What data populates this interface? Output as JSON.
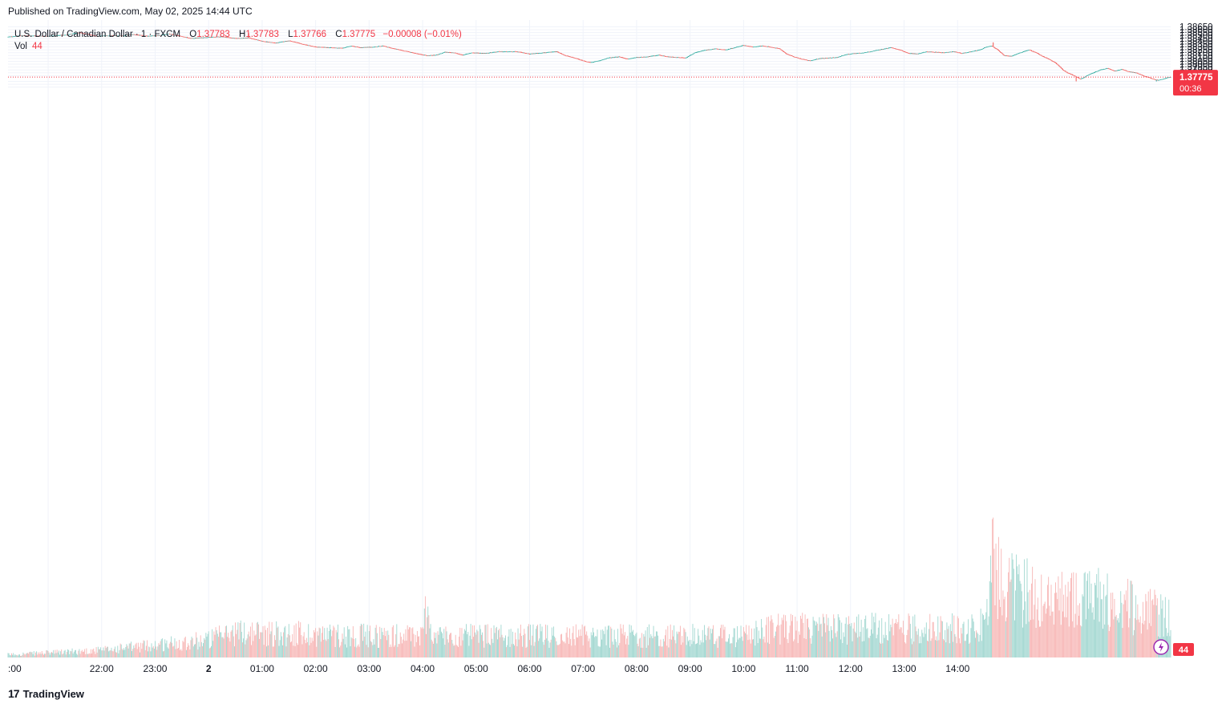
{
  "header": {
    "published": "Published on TradingView.com, May 02, 2025 14:44 UTC"
  },
  "legend": {
    "symbol": "U.S. Dollar / Canadian Dollar · 1 · FXCM",
    "open_label": "O",
    "open": "1.37783",
    "high_label": "H",
    "high": "1.37783",
    "low_label": "L",
    "low": "1.37766",
    "close_label": "C",
    "close": "1.37775",
    "change": "−0.00008 (−0.01%)",
    "vol_label": "Vol",
    "vol_value": "44"
  },
  "footer": {
    "brand": "TradingView",
    "logo_glyph": "17"
  },
  "colors": {
    "up": "#26a69a",
    "down": "#ef5350",
    "up_volume": "#9fd6cf",
    "down_volume": "#f7b5b4",
    "last_price_bg": "#f23645",
    "grid": "#f0f3fa",
    "text": "#131722"
  },
  "chart_data": {
    "type": "candlestick",
    "symbol": "USDCAD",
    "interval": "1",
    "y_axis": {
      "range": [
        1.3756,
        1.3866
      ],
      "ticks": [
        "1.38650",
        "1.38600",
        "1.38550",
        "1.38500",
        "1.38450",
        "1.38400",
        "1.38350",
        "1.38300",
        "1.38250",
        "1.38200",
        "1.38150",
        "1.38100",
        "1.38050",
        "1.38000",
        "1.37950",
        "1.37900",
        "1.37850",
        "1.37800",
        "1.37700",
        "1.37650",
        "1.37600"
      ]
    },
    "x_axis": {
      "ticks": [
        ":00",
        "22:00",
        "23:00",
        "2",
        "01:00",
        "02:00",
        "03:00",
        "04:00",
        "05:00",
        "06:00",
        "07:00",
        "08:00",
        "09:00",
        "10:00",
        "11:00",
        "12:00",
        "13:00",
        "14:00"
      ],
      "range_minutes": [
        -225,
        1079
      ]
    },
    "last_price": "1.37775",
    "countdown": "00:36",
    "volume_badge": "44",
    "price_path": [
      {
        "t": -225,
        "p": 1.38475
      },
      {
        "t": -210,
        "p": 1.385
      },
      {
        "t": -195,
        "p": 1.38495
      },
      {
        "t": -180,
        "p": 1.3849
      },
      {
        "t": -160,
        "p": 1.3851
      },
      {
        "t": -145,
        "p": 1.3855
      },
      {
        "t": -135,
        "p": 1.3852
      },
      {
        "t": -125,
        "p": 1.3849
      },
      {
        "t": -110,
        "p": 1.385
      },
      {
        "t": -95,
        "p": 1.38495
      },
      {
        "t": -85,
        "p": 1.3852
      },
      {
        "t": -70,
        "p": 1.3849
      },
      {
        "t": -55,
        "p": 1.385
      },
      {
        "t": -45,
        "p": 1.3853
      },
      {
        "t": -35,
        "p": 1.385
      },
      {
        "t": -20,
        "p": 1.3845
      },
      {
        "t": 0,
        "p": 1.3847
      },
      {
        "t": 15,
        "p": 1.3848
      },
      {
        "t": 30,
        "p": 1.3845
      },
      {
        "t": 45,
        "p": 1.3846
      },
      {
        "t": 60,
        "p": 1.384
      },
      {
        "t": 75,
        "p": 1.3837
      },
      {
        "t": 90,
        "p": 1.3841
      },
      {
        "t": 105,
        "p": 1.3835
      },
      {
        "t": 120,
        "p": 1.383
      },
      {
        "t": 135,
        "p": 1.3829
      },
      {
        "t": 150,
        "p": 1.3828
      },
      {
        "t": 160,
        "p": 1.3832
      },
      {
        "t": 170,
        "p": 1.3829
      },
      {
        "t": 185,
        "p": 1.383
      },
      {
        "t": 195,
        "p": 1.3832
      },
      {
        "t": 205,
        "p": 1.3828
      },
      {
        "t": 220,
        "p": 1.3823
      },
      {
        "t": 235,
        "p": 1.3818
      },
      {
        "t": 245,
        "p": 1.3815
      },
      {
        "t": 255,
        "p": 1.3816
      },
      {
        "t": 265,
        "p": 1.3821
      },
      {
        "t": 275,
        "p": 1.382
      },
      {
        "t": 285,
        "p": 1.3816
      },
      {
        "t": 295,
        "p": 1.382
      },
      {
        "t": 310,
        "p": 1.3819
      },
      {
        "t": 325,
        "p": 1.3822
      },
      {
        "t": 345,
        "p": 1.3822
      },
      {
        "t": 360,
        "p": 1.3818
      },
      {
        "t": 375,
        "p": 1.382
      },
      {
        "t": 390,
        "p": 1.3822
      },
      {
        "t": 400,
        "p": 1.3815
      },
      {
        "t": 410,
        "p": 1.3811
      },
      {
        "t": 420,
        "p": 1.3806
      },
      {
        "t": 428,
        "p": 1.3803
      },
      {
        "t": 438,
        "p": 1.3806
      },
      {
        "t": 448,
        "p": 1.3811
      },
      {
        "t": 460,
        "p": 1.3813
      },
      {
        "t": 470,
        "p": 1.3809
      },
      {
        "t": 480,
        "p": 1.3812
      },
      {
        "t": 492,
        "p": 1.3813
      },
      {
        "t": 505,
        "p": 1.3816
      },
      {
        "t": 515,
        "p": 1.3813
      },
      {
        "t": 525,
        "p": 1.3812
      },
      {
        "t": 535,
        "p": 1.3811
      },
      {
        "t": 545,
        "p": 1.382
      },
      {
        "t": 555,
        "p": 1.3824
      },
      {
        "t": 568,
        "p": 1.3827
      },
      {
        "t": 580,
        "p": 1.3825
      },
      {
        "t": 590,
        "p": 1.3829
      },
      {
        "t": 600,
        "p": 1.3833
      },
      {
        "t": 610,
        "p": 1.383
      },
      {
        "t": 620,
        "p": 1.3832
      },
      {
        "t": 630,
        "p": 1.383
      },
      {
        "t": 640,
        "p": 1.3827
      },
      {
        "t": 648,
        "p": 1.3818
      },
      {
        "t": 656,
        "p": 1.3813
      },
      {
        "t": 665,
        "p": 1.3809
      },
      {
        "t": 675,
        "p": 1.3806
      },
      {
        "t": 685,
        "p": 1.381
      },
      {
        "t": 695,
        "p": 1.3811
      },
      {
        "t": 705,
        "p": 1.3812
      },
      {
        "t": 715,
        "p": 1.3817
      },
      {
        "t": 725,
        "p": 1.3819
      },
      {
        "t": 735,
        "p": 1.382
      },
      {
        "t": 745,
        "p": 1.3823
      },
      {
        "t": 755,
        "p": 1.3826
      },
      {
        "t": 765,
        "p": 1.3829
      },
      {
        "t": 775,
        "p": 1.3825
      },
      {
        "t": 785,
        "p": 1.3819
      },
      {
        "t": 795,
        "p": 1.3818
      },
      {
        "t": 805,
        "p": 1.3822
      },
      {
        "t": 815,
        "p": 1.3821
      },
      {
        "t": 825,
        "p": 1.382
      },
      {
        "t": 835,
        "p": 1.3822
      },
      {
        "t": 845,
        "p": 1.3819
      },
      {
        "t": 855,
        "p": 1.3822
      },
      {
        "t": 865,
        "p": 1.3825
      },
      {
        "t": 872,
        "p": 1.383
      },
      {
        "t": 878,
        "p": 1.3832
      },
      {
        "t": 885,
        "p": 1.3825
      },
      {
        "t": 892,
        "p": 1.3815
      },
      {
        "t": 900,
        "p": 1.3814
      },
      {
        "t": 910,
        "p": 1.382
      },
      {
        "t": 920,
        "p": 1.3825
      },
      {
        "t": 928,
        "p": 1.382
      },
      {
        "t": 935,
        "p": 1.3814
      },
      {
        "t": 942,
        "p": 1.3809
      },
      {
        "t": 950,
        "p": 1.3802
      },
      {
        "t": 958,
        "p": 1.379
      },
      {
        "t": 963,
        "p": 1.3785
      },
      {
        "t": 968,
        "p": 1.3782
      },
      {
        "t": 973,
        "p": 1.3778
      },
      {
        "t": 978,
        "p": 1.3774
      },
      {
        "t": 985,
        "p": 1.378
      },
      {
        "t": 992,
        "p": 1.3785
      },
      {
        "t": 1000,
        "p": 1.379
      },
      {
        "t": 1008,
        "p": 1.3793
      },
      {
        "t": 1016,
        "p": 1.3788
      },
      {
        "t": 1024,
        "p": 1.3791
      },
      {
        "t": 1032,
        "p": 1.3787
      },
      {
        "t": 1040,
        "p": 1.3785
      },
      {
        "t": 1048,
        "p": 1.378
      },
      {
        "t": 1056,
        "p": 1.3776
      },
      {
        "t": 1064,
        "p": 1.3772
      },
      {
        "t": 1070,
        "p": 1.3774
      },
      {
        "t": 1074,
        "p": 1.3776
      },
      {
        "t": 1077,
        "p": 1.3777
      },
      {
        "t": 1079,
        "p": 1.37775
      }
    ],
    "spikes": [
      {
        "t": 45,
        "high": 1.3854
      },
      {
        "t": 880,
        "high": 1.3838
      },
      {
        "t": 973,
        "low": 1.377
      },
      {
        "t": 1063,
        "low": 1.377
      }
    ],
    "volume_profile": [
      {
        "t": -225,
        "v": 4
      },
      {
        "t": -120,
        "v": 10
      },
      {
        "t": 0,
        "v": 25
      },
      {
        "t": 30,
        "v": 35
      },
      {
        "t": 180,
        "v": 30
      },
      {
        "t": 240,
        "v": 30
      },
      {
        "t": 245,
        "v": 80
      },
      {
        "t": 250,
        "v": 30
      },
      {
        "t": 600,
        "v": 30
      },
      {
        "t": 640,
        "v": 40
      },
      {
        "t": 860,
        "v": 40
      },
      {
        "t": 875,
        "v": 60
      },
      {
        "t": 880,
        "v": 150
      },
      {
        "t": 885,
        "v": 110
      },
      {
        "t": 940,
        "v": 75
      },
      {
        "t": 1000,
        "v": 80
      },
      {
        "t": 1079,
        "v": 55
      }
    ]
  }
}
